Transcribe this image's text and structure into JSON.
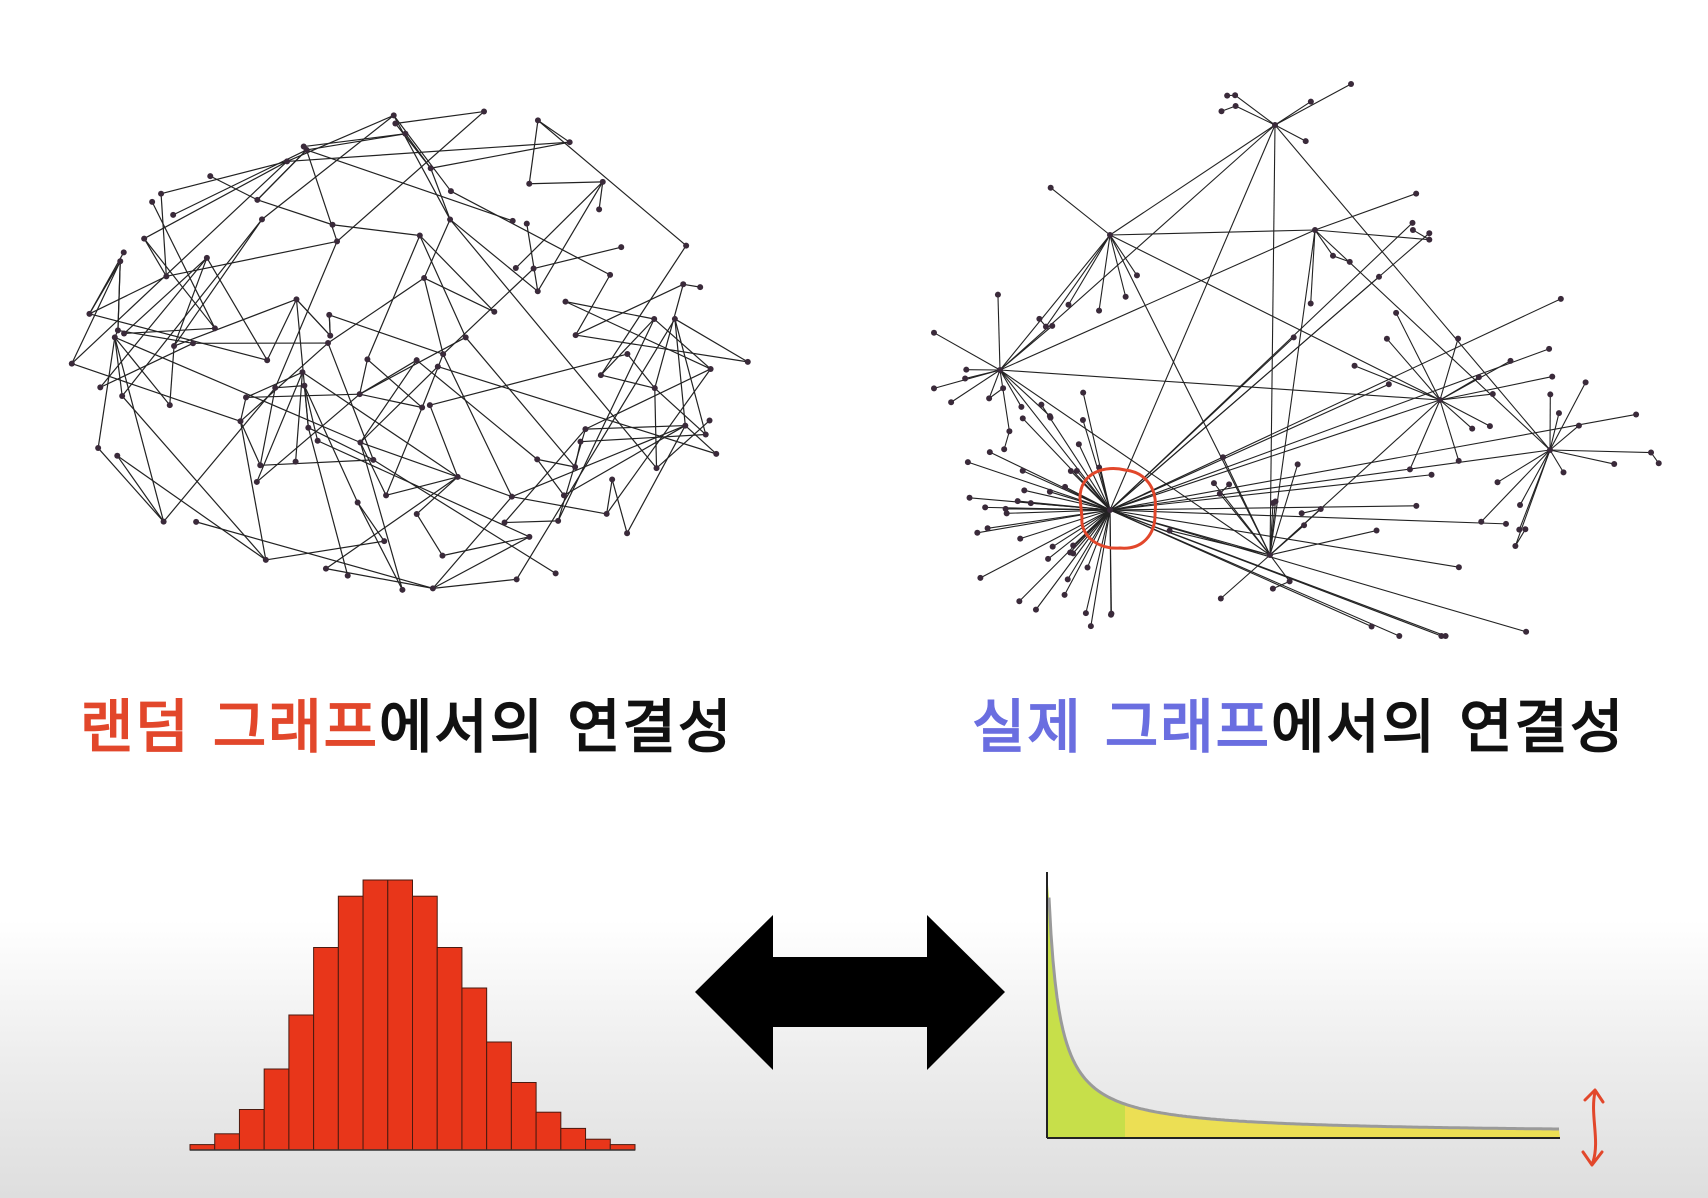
{
  "captions": {
    "left": {
      "highlight": "랜덤 그래프",
      "rest": "에서의 연결성"
    },
    "right": {
      "highlight": "실제 그래프",
      "rest": "에서의 연결성"
    }
  },
  "colors": {
    "highlight_red": "#e2472b",
    "highlight_blue": "#6a6ee0",
    "histogram_bar": "#e8361a",
    "annotation_red": "#e2472b",
    "powerlaw_green": "#c7df4a",
    "powerlaw_yellow": "#ecdf54",
    "arrow": "#000000"
  },
  "icons": {
    "comparison": "double-arrow-icon",
    "annotation": "vertical-double-arrow-icon"
  },
  "histogram": {
    "description_type": "bell-shaped degree distribution",
    "values": [
      2,
      6,
      15,
      30,
      50,
      75,
      94,
      100,
      100,
      94,
      75,
      60,
      40,
      25,
      14,
      8,
      4,
      2
    ]
  },
  "powerlaw": {
    "description_type": "long-tail degree distribution"
  }
}
